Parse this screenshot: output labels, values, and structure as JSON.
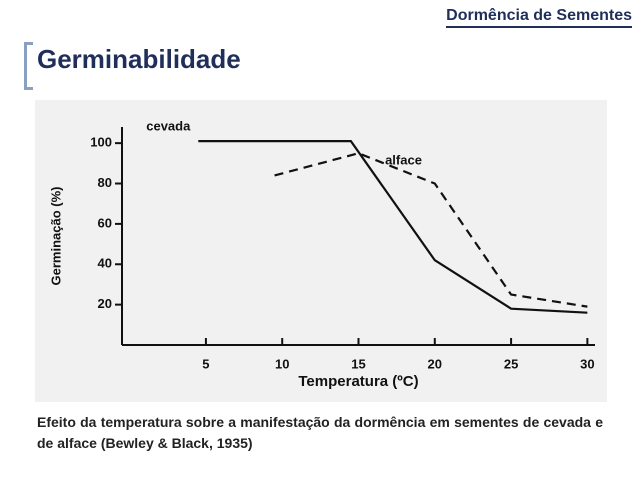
{
  "header": "Dormência de Sementes",
  "title": "Germinabilidade",
  "caption": "Efeito da temperatura sobre a manifestação da dormência em sementes de cevada e de alface (Bewley & Black, 1935)",
  "chart_data": {
    "type": "line",
    "x_label": "Temperatura (ºC)",
    "y_label": "Germinação (%)",
    "xlim": [
      -0.5,
      30.5
    ],
    "xticks": [
      5,
      10,
      15,
      20,
      25,
      30
    ],
    "ylim": [
      0,
      108
    ],
    "yticks": [
      20,
      40,
      60,
      80,
      100
    ],
    "series": [
      {
        "name": "cevada",
        "color": "#111111",
        "dashed": false,
        "x": [
          4.5,
          14.5,
          20,
          25,
          30
        ],
        "values": [
          101,
          101,
          42,
          18,
          16
        ]
      },
      {
        "name": "alface",
        "color": "#111111",
        "dashed": true,
        "x": [
          9.5,
          15,
          20,
          25,
          30
        ],
        "values": [
          84,
          95,
          80,
          25,
          19
        ]
      }
    ]
  }
}
